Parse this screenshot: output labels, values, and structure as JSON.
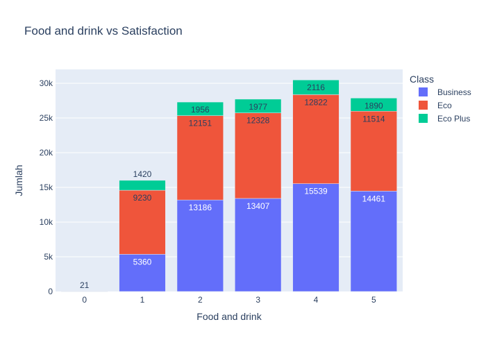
{
  "chart_data": {
    "type": "bar",
    "stacked": true,
    "title": "Food and drink vs Satisfaction",
    "xlabel": "Food and drink",
    "ylabel": "Jumlah",
    "categories": [
      "0",
      "1",
      "2",
      "3",
      "4",
      "5"
    ],
    "ylim": [
      0,
      32000
    ],
    "yticks": [
      0,
      5000,
      10000,
      15000,
      20000,
      25000,
      30000
    ],
    "ytick_labels": [
      "0",
      "5k",
      "10k",
      "15k",
      "20k",
      "25k",
      "30k"
    ],
    "legend_title": "Class",
    "legend_position": "top-right",
    "grid": true,
    "series": [
      {
        "name": "Business",
        "color": "#636efa",
        "values": [
          0,
          5360,
          13186,
          13407,
          15539,
          14461
        ],
        "labels": [
          "",
          "5360",
          "13186",
          "13407",
          "15539",
          "14461"
        ]
      },
      {
        "name": "Eco",
        "color": "#ef553b",
        "values": [
          21,
          9230,
          12151,
          12328,
          12822,
          11514
        ],
        "labels": [
          "21",
          "9230",
          "12151",
          "12328",
          "12822",
          "11514"
        ]
      },
      {
        "name": "Eco Plus",
        "color": "#00cc96",
        "values": [
          0,
          1420,
          1956,
          1977,
          2116,
          1890
        ],
        "labels": [
          "",
          "1420",
          "1956",
          "1977",
          "2116",
          "1890"
        ]
      }
    ]
  }
}
